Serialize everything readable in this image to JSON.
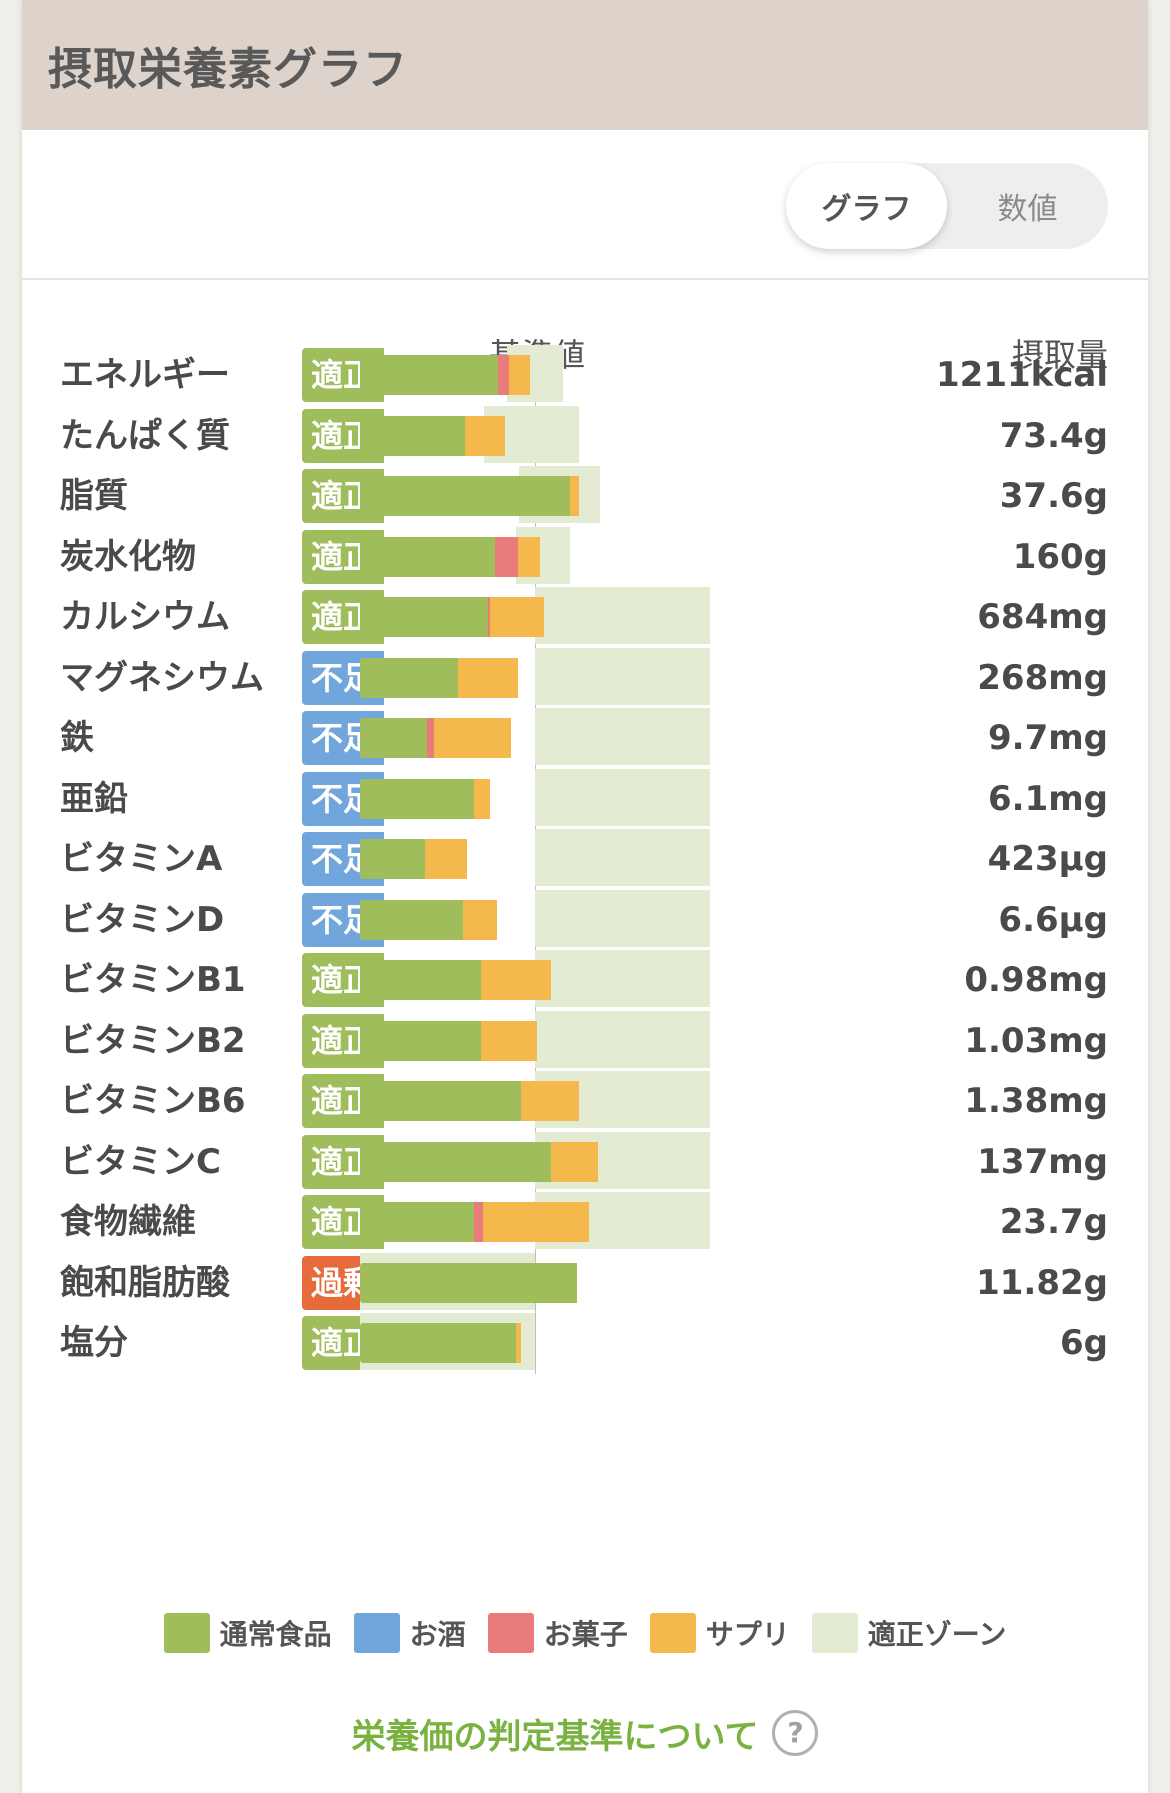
{
  "header": {
    "title": "摂取栄養素グラフ"
  },
  "toggle": {
    "graph_label": "グラフ",
    "number_label": "数値"
  },
  "columns": {
    "reference": "基準値",
    "intake": "摂取量"
  },
  "colors": {
    "normal": "#a0bd5c",
    "alcohol": "#71a6dc",
    "sweets": "#e97b7b",
    "supplement": "#f5b84d",
    "zone": "#e3ecd2",
    "badge_ok": "#a0bd5c",
    "badge_low": "#71a6dc",
    "badge_over": "#e76b3a"
  },
  "chart_data": {
    "type": "bar",
    "stacked": true,
    "orientation": "horizontal",
    "value_unit": "percent of 基準値",
    "series_names": [
      "通常食品",
      "お酒",
      "お菓子",
      "サプリ"
    ],
    "categories": [
      "エネルギー",
      "たんぱく質",
      "脂質",
      "炭水化物",
      "カルシウム",
      "マグネシウム",
      "鉄",
      "亜鉛",
      "ビタミンA",
      "ビタミンD",
      "ビタミンB1",
      "ビタミンB2",
      "ビタミンB6",
      "ビタミンC",
      "食物繊維",
      "飽和脂肪酸",
      "塩分"
    ],
    "rows": [
      {
        "label": "エネルギー",
        "status": "適正",
        "status_type": "ok",
        "value": "1211kcal",
        "normal": 79,
        "sweets": 6,
        "supplement": 12,
        "zone": [
          84,
          116
        ]
      },
      {
        "label": "たんぱく質",
        "status": "適正",
        "status_type": "ok",
        "value": "73.4g",
        "normal": 60,
        "sweets": 0,
        "supplement": 23,
        "zone": [
          71,
          125
        ]
      },
      {
        "label": "脂質",
        "status": "適正",
        "status_type": "ok",
        "value": "37.6g",
        "normal": 120,
        "sweets": 0,
        "supplement": 5,
        "zone": [
          91,
          137
        ]
      },
      {
        "label": "炭水化物",
        "status": "適正",
        "status_type": "ok",
        "value": "160g",
        "normal": 77,
        "sweets": 13,
        "supplement": 13,
        "zone": [
          89,
          120
        ]
      },
      {
        "label": "カルシウム",
        "status": "適正",
        "status_type": "ok",
        "value": "684mg",
        "normal": 73,
        "sweets": 1,
        "supplement": 31,
        "zone": [
          100,
          200
        ]
      },
      {
        "label": "マグネシウム",
        "status": "不足",
        "status_type": "low",
        "value": "268mg",
        "normal": 56,
        "sweets": 0,
        "supplement": 34,
        "zone": [
          100,
          200
        ]
      },
      {
        "label": "鉄",
        "status": "不足",
        "status_type": "low",
        "value": "9.7mg",
        "normal": 38,
        "sweets": 4,
        "supplement": 44,
        "zone": [
          100,
          200
        ]
      },
      {
        "label": "亜鉛",
        "status": "不足",
        "status_type": "low",
        "value": "6.1mg",
        "normal": 65,
        "sweets": 0,
        "supplement": 9,
        "zone": [
          100,
          200
        ]
      },
      {
        "label": "ビタミンA",
        "status": "不足",
        "status_type": "low",
        "value": "423μg",
        "normal": 37,
        "sweets": 0,
        "supplement": 24,
        "zone": [
          100,
          200
        ]
      },
      {
        "label": "ビタミンD",
        "status": "不足",
        "status_type": "low",
        "value": "6.6μg",
        "normal": 59,
        "sweets": 0,
        "supplement": 19,
        "zone": [
          100,
          200
        ]
      },
      {
        "label": "ビタミンB1",
        "status": "適正",
        "status_type": "ok",
        "value": "0.98mg",
        "normal": 69,
        "sweets": 0,
        "supplement": 40,
        "zone": [
          100,
          200
        ]
      },
      {
        "label": "ビタミンB2",
        "status": "適正",
        "status_type": "ok",
        "value": "1.03mg",
        "normal": 69,
        "sweets": 0,
        "supplement": 32,
        "zone": [
          100,
          200
        ]
      },
      {
        "label": "ビタミンB6",
        "status": "適正",
        "status_type": "ok",
        "value": "1.38mg",
        "normal": 92,
        "sweets": 0,
        "supplement": 33,
        "zone": [
          100,
          200
        ]
      },
      {
        "label": "ビタミンC",
        "status": "適正",
        "status_type": "ok",
        "value": "137mg",
        "normal": 109,
        "sweets": 0,
        "supplement": 27,
        "zone": [
          100,
          200
        ]
      },
      {
        "label": "食物繊維",
        "status": "適正",
        "status_type": "ok",
        "value": "23.7g",
        "normal": 65,
        "sweets": 5,
        "supplement": 61,
        "zone": [
          100,
          200
        ]
      },
      {
        "label": "飽和脂肪酸",
        "status": "過剰",
        "status_type": "over",
        "value": "11.82g",
        "normal": 124,
        "sweets": 0,
        "supplement": 0,
        "zone": [
          0,
          100
        ]
      },
      {
        "label": "塩分",
        "status": "適正",
        "status_type": "ok",
        "value": "6g",
        "normal": 89,
        "sweets": 0,
        "supplement": 3,
        "zone": [
          0,
          100
        ]
      }
    ]
  },
  "legend": [
    {
      "label": "通常食品",
      "color": "#a0bd5c"
    },
    {
      "label": "お酒",
      "color": "#71a6dc"
    },
    {
      "label": "お菓子",
      "color": "#e97b7b"
    },
    {
      "label": "サプリ",
      "color": "#f5b84d"
    },
    {
      "label": "適正ゾーン",
      "color": "#e3ecd2"
    }
  ],
  "footer": {
    "link_label": "栄養価の判定基準について",
    "help_icon": "?"
  }
}
